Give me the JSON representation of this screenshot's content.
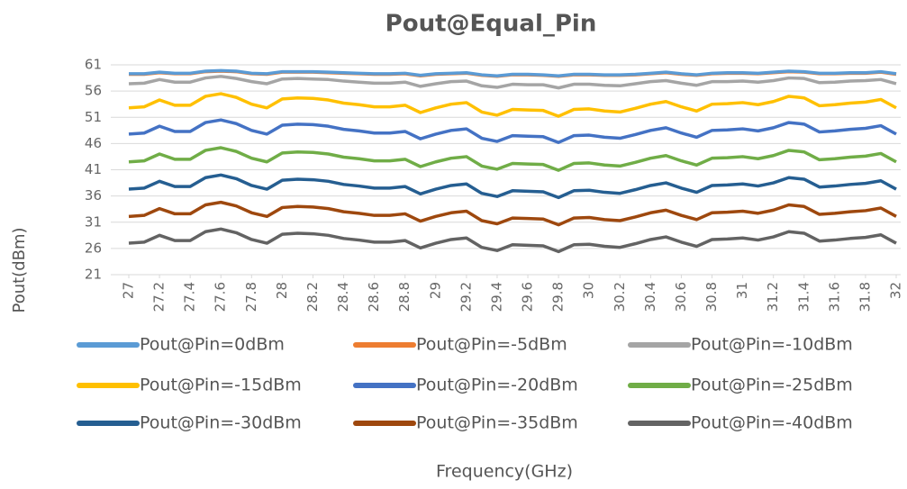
{
  "chart_data": {
    "type": "line",
    "title": "Pout@Equal_Pin",
    "xlabel": "Frequency(GHz)",
    "ylabel": "Pout(dBm)",
    "x": [
      27,
      27.1,
      27.2,
      27.3,
      27.4,
      27.5,
      27.6,
      27.7,
      27.8,
      27.9,
      28,
      28.1,
      28.2,
      28.3,
      28.4,
      28.5,
      28.6,
      28.7,
      28.8,
      28.9,
      29,
      29.1,
      29.2,
      29.3,
      29.4,
      29.5,
      29.6,
      29.7,
      29.8,
      29.9,
      30,
      30.1,
      30.2,
      30.3,
      30.4,
      30.5,
      30.6,
      30.7,
      30.8,
      30.9,
      31,
      31.1,
      31.2,
      31.3,
      31.4,
      31.5,
      31.6,
      31.7,
      31.8,
      31.9,
      32
    ],
    "xlim": [
      27,
      32
    ],
    "xticks": [
      27,
      27.2,
      27.4,
      27.6,
      27.8,
      28,
      28.2,
      28.4,
      28.6,
      28.8,
      29,
      29.2,
      29.4,
      29.6,
      29.8,
      30,
      30.2,
      30.4,
      30.6,
      30.8,
      31,
      31.2,
      31.4,
      31.6,
      31.8,
      32
    ],
    "ylim": [
      21,
      61
    ],
    "yticks": [
      21,
      26,
      31,
      36,
      41,
      46,
      51,
      56,
      61
    ],
    "grid": true,
    "legend": "bottom",
    "series": [
      {
        "name": "Pout@Pin=0dBm",
        "color": "#5b9bd5",
        "values": [
          59.3,
          59.3,
          59.6,
          59.4,
          59.4,
          59.8,
          59.9,
          59.8,
          59.4,
          59.3,
          59.7,
          59.7,
          59.7,
          59.6,
          59.5,
          59.4,
          59.3,
          59.3,
          59.4,
          59,
          59.3,
          59.4,
          59.5,
          59.1,
          58.9,
          59.2,
          59.2,
          59.1,
          58.9,
          59.2,
          59.2,
          59.1,
          59.1,
          59.2,
          59.4,
          59.6,
          59.3,
          59.1,
          59.4,
          59.5,
          59.5,
          59.4,
          59.6,
          59.8,
          59.7,
          59.4,
          59.4,
          59.5,
          59.5,
          59.7,
          59.3
        ]
      },
      {
        "name": "Pout@Pin=-5dBm",
        "color": "#ed7d31",
        "values": [
          59.2,
          59.2,
          59.5,
          59.3,
          59.3,
          59.7,
          59.8,
          59.7,
          59.3,
          59.2,
          59.6,
          59.6,
          59.6,
          59.5,
          59.4,
          59.3,
          59.2,
          59.2,
          59.3,
          58.9,
          59.2,
          59.3,
          59.4,
          59,
          58.8,
          59.1,
          59.1,
          59,
          58.8,
          59.1,
          59.1,
          59,
          59,
          59.1,
          59.3,
          59.5,
          59.2,
          59,
          59.3,
          59.4,
          59.4,
          59.3,
          59.5,
          59.7,
          59.6,
          59.3,
          59.3,
          59.4,
          59.4,
          59.6,
          59.2
        ]
      },
      {
        "name": "Pout@Pin=-10dBm",
        "color": "#a5a5a5",
        "values": [
          57.4,
          57.5,
          58.2,
          57.7,
          57.7,
          58.5,
          58.8,
          58.4,
          57.8,
          57.4,
          58.3,
          58.4,
          58.3,
          58.2,
          57.9,
          57.7,
          57.5,
          57.5,
          57.7,
          56.9,
          57.4,
          57.8,
          57.9,
          57,
          56.7,
          57.3,
          57.2,
          57.2,
          56.6,
          57.3,
          57.3,
          57.1,
          57,
          57.4,
          57.8,
          58,
          57.5,
          57.1,
          57.8,
          57.8,
          57.9,
          57.7,
          58,
          58.5,
          58.4,
          57.6,
          57.7,
          57.9,
          58,
          58.2,
          57.4
        ]
      },
      {
        "name": "Pout@Pin=-15dBm",
        "color": "#ffc000",
        "values": [
          52.8,
          53,
          54.3,
          53.3,
          53.3,
          55,
          55.5,
          54.8,
          53.5,
          52.8,
          54.5,
          54.7,
          54.6,
          54.3,
          53.7,
          53.4,
          53,
          53,
          53.3,
          51.9,
          52.8,
          53.5,
          53.8,
          52,
          51.4,
          52.5,
          52.4,
          52.3,
          51.2,
          52.5,
          52.6,
          52.2,
          52,
          52.7,
          53.5,
          54,
          53,
          52.2,
          53.5,
          53.6,
          53.8,
          53.4,
          54,
          55,
          54.7,
          53.2,
          53.4,
          53.7,
          53.9,
          54.4,
          52.8
        ]
      },
      {
        "name": "Pout@Pin=-20dBm",
        "color": "#4472c4",
        "values": [
          47.8,
          48,
          49.3,
          48.3,
          48.3,
          50,
          50.5,
          49.8,
          48.5,
          47.8,
          49.5,
          49.7,
          49.6,
          49.3,
          48.7,
          48.4,
          48,
          48,
          48.3,
          46.9,
          47.8,
          48.5,
          48.8,
          47,
          46.4,
          47.5,
          47.4,
          47.3,
          46.2,
          47.5,
          47.6,
          47.2,
          47,
          47.7,
          48.5,
          49,
          48,
          47.2,
          48.5,
          48.6,
          48.8,
          48.4,
          49,
          50,
          49.7,
          48.2,
          48.4,
          48.7,
          48.9,
          49.4,
          47.8
        ]
      },
      {
        "name": "Pout@Pin=-25dBm",
        "color": "#70ad47",
        "values": [
          42.5,
          42.7,
          44,
          43,
          43,
          44.7,
          45.2,
          44.5,
          43.2,
          42.5,
          44.2,
          44.4,
          44.3,
          44,
          43.4,
          43.1,
          42.7,
          42.7,
          43,
          41.6,
          42.5,
          43.2,
          43.5,
          41.7,
          41.1,
          42.2,
          42.1,
          42,
          40.9,
          42.2,
          42.3,
          41.9,
          41.7,
          42.4,
          43.2,
          43.7,
          42.7,
          41.9,
          43.2,
          43.3,
          43.5,
          43.1,
          43.7,
          44.7,
          44.4,
          42.9,
          43.1,
          43.4,
          43.6,
          44.1,
          42.5
        ]
      },
      {
        "name": "Pout@Pin=-30dBm",
        "color": "#255e91",
        "values": [
          37.3,
          37.5,
          38.8,
          37.8,
          37.8,
          39.5,
          40,
          39.3,
          38,
          37.3,
          39,
          39.2,
          39.1,
          38.8,
          38.2,
          37.9,
          37.5,
          37.5,
          37.8,
          36.4,
          37.3,
          38,
          38.3,
          36.5,
          35.9,
          37,
          36.9,
          36.8,
          35.7,
          37,
          37.1,
          36.7,
          36.5,
          37.2,
          38,
          38.5,
          37.5,
          36.7,
          38,
          38.1,
          38.3,
          37.9,
          38.5,
          39.5,
          39.2,
          37.7,
          37.9,
          38.2,
          38.4,
          38.9,
          37.3
        ]
      },
      {
        "name": "Pout@Pin=-35dBm",
        "color": "#9e480e",
        "values": [
          32.1,
          32.3,
          33.6,
          32.6,
          32.6,
          34.3,
          34.8,
          34.1,
          32.8,
          32.1,
          33.8,
          34,
          33.9,
          33.6,
          33,
          32.7,
          32.3,
          32.3,
          32.6,
          31.2,
          32.1,
          32.8,
          33.1,
          31.3,
          30.7,
          31.8,
          31.7,
          31.6,
          30.5,
          31.8,
          31.9,
          31.5,
          31.3,
          32,
          32.8,
          33.3,
          32.3,
          31.5,
          32.8,
          32.9,
          33.1,
          32.7,
          33.3,
          34.3,
          34,
          32.5,
          32.7,
          33,
          33.2,
          33.7,
          32.1
        ]
      },
      {
        "name": "Pout@Pin=-40dBm",
        "color": "#636363",
        "values": [
          27,
          27.2,
          28.5,
          27.5,
          27.5,
          29.2,
          29.7,
          29,
          27.7,
          27,
          28.7,
          28.9,
          28.8,
          28.5,
          27.9,
          27.6,
          27.2,
          27.2,
          27.5,
          26.1,
          27,
          27.7,
          28,
          26.2,
          25.6,
          26.7,
          26.6,
          26.5,
          25.4,
          26.7,
          26.8,
          26.4,
          26.2,
          26.9,
          27.7,
          28.2,
          27.2,
          26.4,
          27.7,
          27.8,
          28,
          27.6,
          28.2,
          29.2,
          28.9,
          27.4,
          27.6,
          27.9,
          28.1,
          28.6,
          27
        ]
      }
    ]
  }
}
